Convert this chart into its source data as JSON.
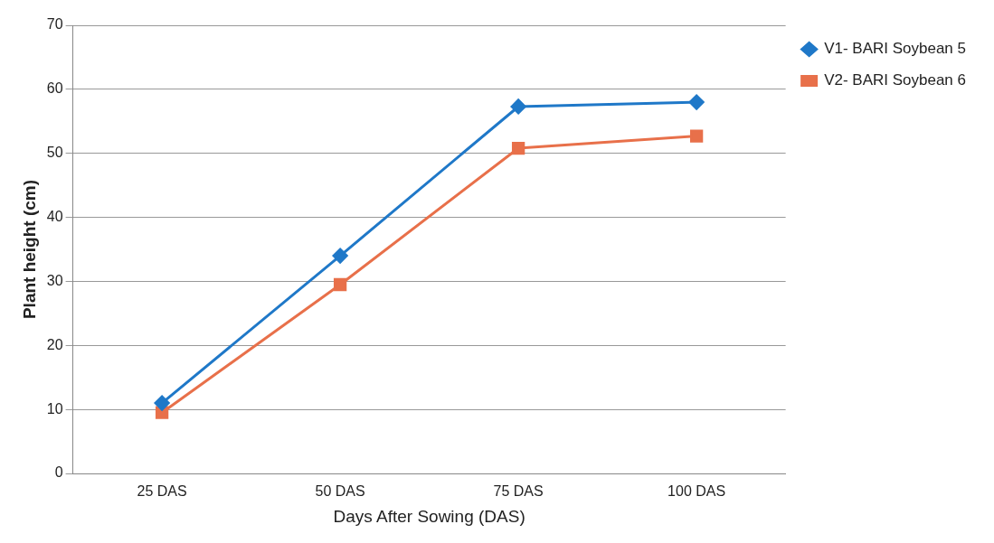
{
  "chart_data": {
    "type": "line",
    "xlabel": "Days After Sowing (DAS)",
    "ylabel": "Plant height (cm)",
    "categories": [
      "25 DAS",
      "50 DAS",
      "75 DAS",
      "100 DAS"
    ],
    "series": [
      {
        "name": "V1- BARI Soybean 5",
        "color": "#1f78c8",
        "marker": "diamond",
        "values": [
          11,
          34,
          57.3,
          58
        ]
      },
      {
        "name": "V2- BARI Soybean 6",
        "color": "#e8704a",
        "marker": "square",
        "values": [
          9.5,
          29.5,
          50.8,
          52.7
        ]
      }
    ],
    "ylim": [
      0,
      70
    ],
    "yticks": [
      0,
      10,
      20,
      30,
      40,
      50,
      60,
      70
    ],
    "grid": "y",
    "legend": "right"
  }
}
